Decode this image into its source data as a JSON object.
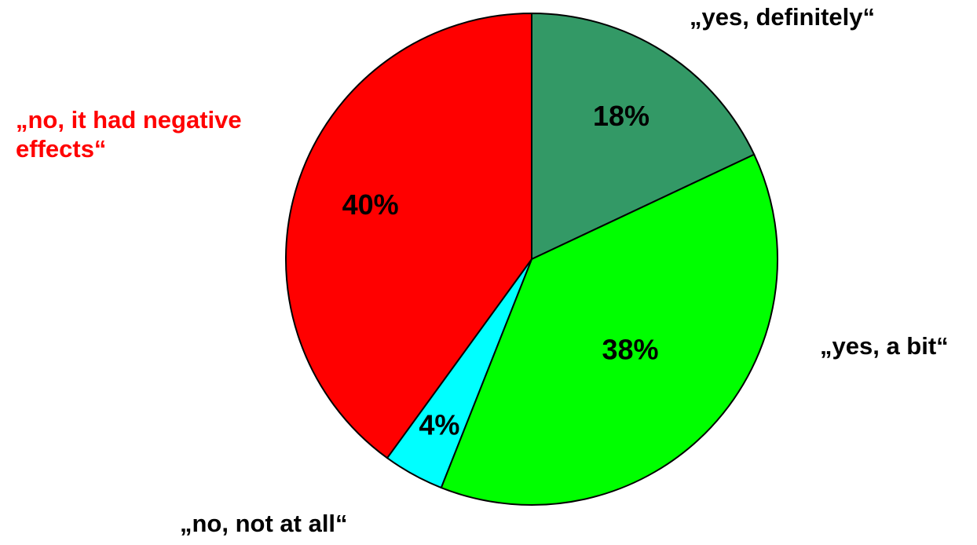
{
  "chart_data": {
    "type": "pie",
    "title": "",
    "slices": [
      {
        "label": "„yes, definitely“",
        "value": 18,
        "percent_label": "18%",
        "color": "#339966",
        "label_color": "#000000"
      },
      {
        "label": "„yes, a bit“",
        "value": 38,
        "percent_label": "38%",
        "color": "#00ff00",
        "label_color": "#000000"
      },
      {
        "label": "„no, not at all“",
        "value": 4,
        "percent_label": "4%",
        "color": "#00ffff",
        "label_color": "#000000"
      },
      {
        "label": "„no, it had negative effects“",
        "label_lines": [
          "„no, it had negative",
          "effects“"
        ],
        "value": 40,
        "percent_label": "40%",
        "color": "#ff0000",
        "label_color": "#ff0000"
      }
    ],
    "start_angle": "12 o'clock",
    "direction": "clockwise",
    "legend": "none (labels placed beside slices)"
  }
}
